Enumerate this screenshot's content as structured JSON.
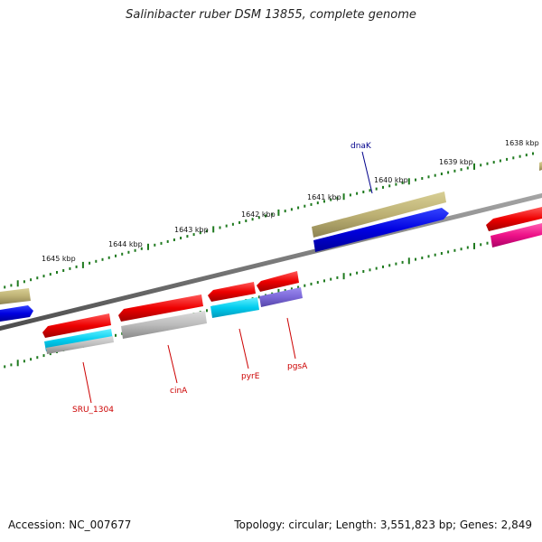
{
  "title": "Salinibacter ruber DSM 13855, complete genome",
  "footer": {
    "accession": "Accession: NC_007677",
    "summary": "Topology: circular; Length: 3,551,823 bp; Genes: 2,849"
  },
  "colors": {
    "backbone": "#7a7a7a",
    "ticks": "#1f7a1f",
    "forward_label": "#00008b",
    "reverse_label": "#cc0000"
  },
  "ticks": {
    "major_labels": [
      "1638 kbp",
      "1639 kbp",
      "1640 kbp",
      "1641 kbp",
      "1642 kbp",
      "1643 kbp",
      "1644 kbp",
      "1645 kbp"
    ]
  },
  "genes": [
    {
      "name": "dnaK",
      "strand": "forward",
      "color": "#0000ee",
      "labeled": true
    },
    {
      "name": "SRU_1304",
      "strand": "reverse",
      "color": "#ff0000",
      "labeled": true
    },
    {
      "name": "cinA",
      "strand": "reverse",
      "color": "#ff0000",
      "labeled": true
    },
    {
      "name": "pyrE",
      "strand": "reverse",
      "color": "#ff0000",
      "labeled": true
    },
    {
      "name": "pgsA",
      "strand": "reverse",
      "color": "#ff0000",
      "labeled": true
    }
  ]
}
